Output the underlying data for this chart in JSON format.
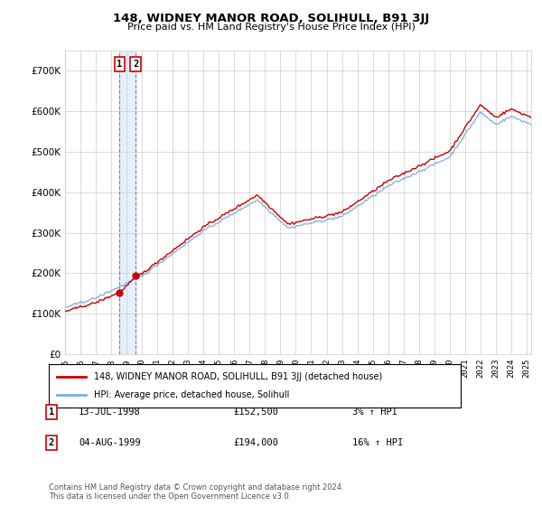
{
  "title": "148, WIDNEY MANOR ROAD, SOLIHULL, B91 3JJ",
  "subtitle": "Price paid vs. HM Land Registry's House Price Index (HPI)",
  "legend_line1": "148, WIDNEY MANOR ROAD, SOLIHULL, B91 3JJ (detached house)",
  "legend_line2": "HPI: Average price, detached house, Solihull",
  "footer": "Contains HM Land Registry data © Crown copyright and database right 2024.\nThis data is licensed under the Open Government Licence v3.0.",
  "sale1_label": "1",
  "sale1_date": "13-JUL-1998",
  "sale1_price": "£152,500",
  "sale1_hpi": "3% ↑ HPI",
  "sale2_label": "2",
  "sale2_date": "04-AUG-1999",
  "sale2_price": "£194,000",
  "sale2_hpi": "16% ↑ HPI",
  "sale1_x": 1998.54,
  "sale1_y": 152500,
  "sale2_x": 1999.59,
  "sale2_y": 194000,
  "property_color": "#cc0000",
  "hpi_color": "#7aaddc",
  "ylim": [
    0,
    750000
  ],
  "xlim_start": 1995.0,
  "xlim_end": 2025.3,
  "bg_color": "#ffffff",
  "grid_color": "#cccccc",
  "vline1_x": 1998.54,
  "vline2_x": 1999.59,
  "vband_color": "#ddeeff",
  "label_border_color": "#cc0000"
}
